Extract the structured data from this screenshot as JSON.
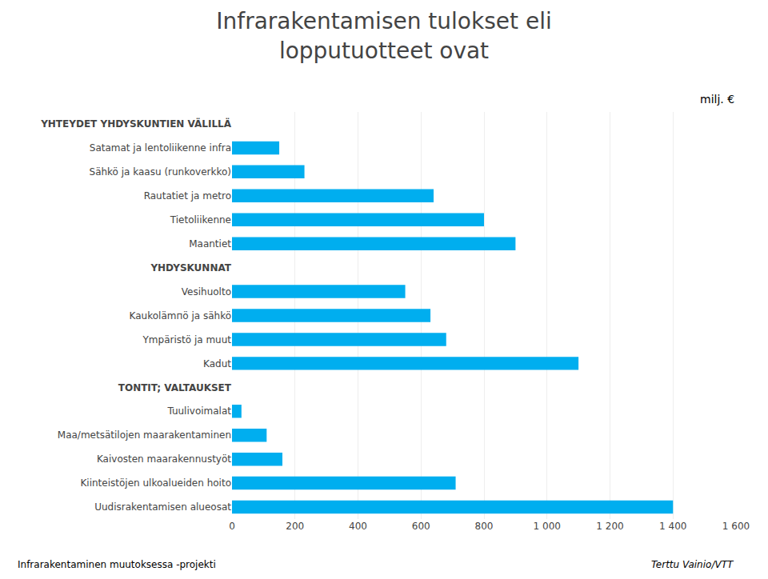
{
  "chart_data": {
    "type": "bar",
    "orientation": "horizontal",
    "title": "Infrarakentamisen tulokset eli\nlopputuotteet ovat",
    "annotations": [
      "milj. €",
      "Infrarakentaminen muutoksessa -projekti",
      "Terttu Vainio/VTT"
    ],
    "categories": [
      "YHTEYDET YHDYSKUNTIEN VÄLILLÄ",
      "Satamat ja lentoliikenne infra",
      "Sähkö ja kaasu (runkoverkko)",
      "Rautatiet ja metro",
      "Tietoliikenne",
      "Maantiet",
      "YHDYSKUNNAT",
      "Vesihuolto",
      "Kaukolämпö ja sähkö",
      "Ympäristö ja muut",
      "Kadut",
      "TONTIT; VALTAUKSET",
      "Tuulivoimalat",
      "Maa/metsätilojen maarakentaminen",
      "Kaivosten maarakennustyöt",
      "Kiinteistöjen ulkoalueiden hoito",
      "Uudisrakentamisen alueosat"
    ],
    "values": [
      0,
      150,
      230,
      640,
      800,
      900,
      0,
      550,
      630,
      680,
      1100,
      0,
      30,
      110,
      160,
      710,
      1400
    ],
    "color": "#00AEEF",
    "xlim": [
      0,
      1600
    ],
    "xticks": [
      0,
      200,
      400,
      600,
      800,
      {
        "value": 1000,
        "label": "1 000"
      },
      {
        "value": 1200,
        "label": "1 200"
      },
      {
        "value": 1400,
        "label": "1 400"
      },
      {
        "value": 1600,
        "label": "1 600"
      }
    ],
    "grid": true
  }
}
